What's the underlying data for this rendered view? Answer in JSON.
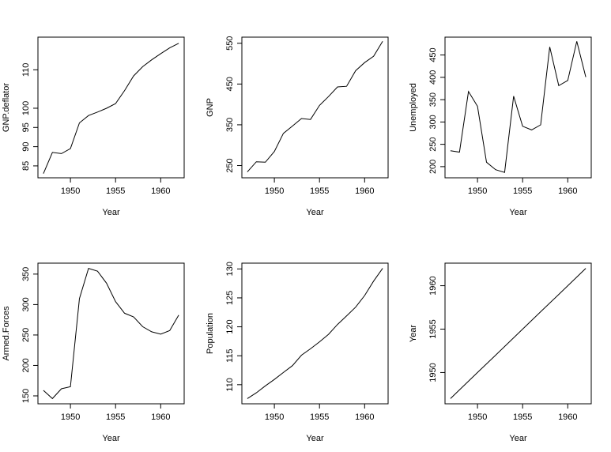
{
  "chart_data": [
    {
      "type": "line",
      "xlabel": "Year",
      "ylabel": "GNP.deflator",
      "xlim": [
        1946.4,
        1962.6
      ],
      "ylim": [
        81.9,
        118.5
      ],
      "xticks": [
        1950,
        1955,
        1960
      ],
      "yticks": [
        85,
        90,
        95,
        100,
        110
      ],
      "x": [
        1947,
        1948,
        1949,
        1950,
        1951,
        1952,
        1953,
        1954,
        1955,
        1956,
        1957,
        1958,
        1959,
        1960,
        1961,
        1962
      ],
      "y": [
        83.0,
        88.5,
        88.2,
        89.5,
        96.2,
        98.1,
        99.0,
        100.0,
        101.2,
        104.6,
        108.4,
        110.8,
        112.6,
        114.2,
        115.7,
        116.9
      ]
    },
    {
      "type": "line",
      "xlabel": "Year",
      "ylabel": "GNP",
      "xlim": [
        1946.4,
        1962.6
      ],
      "ylim": [
        220,
        565
      ],
      "xticks": [
        1950,
        1955,
        1960
      ],
      "yticks": [
        250,
        350,
        450,
        550
      ],
      "x": [
        1947,
        1948,
        1949,
        1950,
        1951,
        1952,
        1953,
        1954,
        1955,
        1956,
        1957,
        1958,
        1959,
        1960,
        1961,
        1962
      ],
      "y": [
        234.3,
        259.4,
        258.1,
        284.6,
        329.0,
        347.0,
        365.4,
        363.1,
        397.5,
        419.2,
        442.8,
        444.5,
        482.7,
        502.6,
        518.2,
        554.9
      ]
    },
    {
      "type": "line",
      "xlabel": "Year",
      "ylabel": "Unemployed",
      "xlim": [
        1946.4,
        1962.6
      ],
      "ylim": [
        175,
        490
      ],
      "xticks": [
        1950,
        1955,
        1960
      ],
      "yticks": [
        200,
        250,
        300,
        350,
        400,
        450
      ],
      "x": [
        1947,
        1948,
        1949,
        1950,
        1951,
        1952,
        1953,
        1954,
        1955,
        1956,
        1957,
        1958,
        1959,
        1960,
        1961,
        1962
      ],
      "y": [
        235.6,
        232.5,
        368.2,
        335.1,
        209.9,
        193.2,
        187.0,
        357.8,
        290.4,
        282.2,
        293.6,
        468.1,
        381.3,
        393.1,
        480.6,
        400.7
      ]
    },
    {
      "type": "line",
      "xlabel": "Year",
      "ylabel": "Armed.Forces",
      "xlim": [
        1946.4,
        1962.6
      ],
      "ylim": [
        137,
        368
      ],
      "xticks": [
        1950,
        1955,
        1960
      ],
      "yticks": [
        150,
        200,
        250,
        300,
        350
      ],
      "x": [
        1947,
        1948,
        1949,
        1950,
        1951,
        1952,
        1953,
        1954,
        1955,
        1956,
        1957,
        1958,
        1959,
        1960,
        1961,
        1962
      ],
      "y": [
        159.0,
        145.6,
        161.6,
        165.0,
        309.9,
        359.4,
        354.7,
        335.0,
        304.8,
        285.7,
        279.8,
        263.7,
        255.2,
        251.4,
        257.2,
        282.7
      ]
    },
    {
      "type": "line",
      "xlabel": "Year",
      "ylabel": "Population",
      "xlim": [
        1946.4,
        1962.6
      ],
      "ylim": [
        106.7,
        131.0
      ],
      "xticks": [
        1950,
        1955,
        1960
      ],
      "yticks": [
        110,
        115,
        120,
        125,
        130
      ],
      "x": [
        1947,
        1948,
        1949,
        1950,
        1951,
        1952,
        1953,
        1954,
        1955,
        1956,
        1957,
        1958,
        1959,
        1960,
        1961,
        1962
      ],
      "y": [
        107.6,
        108.6,
        109.8,
        110.9,
        112.1,
        113.3,
        115.1,
        116.2,
        117.4,
        118.7,
        120.4,
        121.9,
        123.4,
        125.4,
        127.9,
        130.1
      ]
    },
    {
      "type": "line",
      "xlabel": "Year",
      "ylabel": "Year",
      "xlim": [
        1946.4,
        1962.6
      ],
      "ylim": [
        1946.4,
        1962.6
      ],
      "xticks": [
        1950,
        1955,
        1960
      ],
      "yticks": [
        1950,
        1955,
        1960
      ],
      "x": [
        1947,
        1948,
        1949,
        1950,
        1951,
        1952,
        1953,
        1954,
        1955,
        1956,
        1957,
        1958,
        1959,
        1960,
        1961,
        1962
      ],
      "y": [
        1947,
        1948,
        1949,
        1950,
        1951,
        1952,
        1953,
        1954,
        1955,
        1956,
        1957,
        1958,
        1959,
        1960,
        1961,
        1962
      ]
    }
  ]
}
